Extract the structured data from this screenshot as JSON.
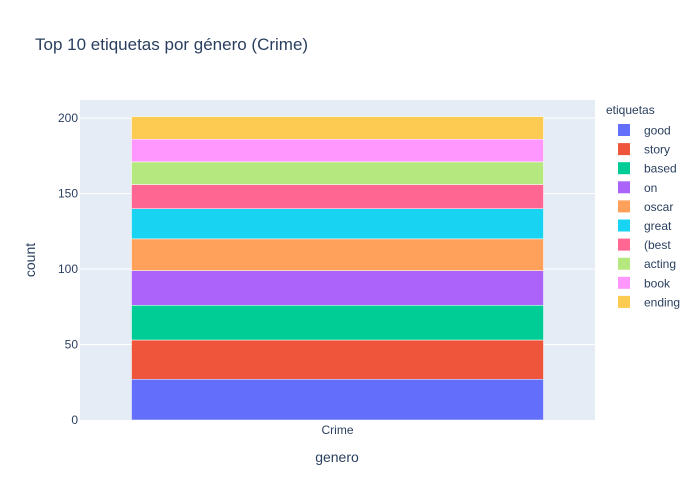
{
  "chart_data": {
    "type": "bar",
    "stacked": true,
    "title": "Top 10 etiquetas por género (Crime)",
    "xlabel": "genero",
    "ylabel": "count",
    "categories": [
      "Crime"
    ],
    "ylim": [
      0,
      212
    ],
    "yticks": [
      0,
      50,
      100,
      150,
      200
    ],
    "grid": true,
    "legend_title": "etiquetas",
    "legend_position": "right",
    "series": [
      {
        "name": "good",
        "values": [
          27
        ],
        "color": "#636efa"
      },
      {
        "name": "story",
        "values": [
          26
        ],
        "color": "#EF553B"
      },
      {
        "name": "based",
        "values": [
          23
        ],
        "color": "#00cc96"
      },
      {
        "name": "on",
        "values": [
          23
        ],
        "color": "#ab63fa"
      },
      {
        "name": "oscar",
        "values": [
          21
        ],
        "color": "#FFA15A"
      },
      {
        "name": "great",
        "values": [
          20
        ],
        "color": "#19d3f3"
      },
      {
        "name": "(best",
        "values": [
          16
        ],
        "color": "#FF6692"
      },
      {
        "name": "acting",
        "values": [
          15
        ],
        "color": "#B6E880"
      },
      {
        "name": "book",
        "values": [
          15
        ],
        "color": "#FF97FF"
      },
      {
        "name": "ending",
        "values": [
          15
        ],
        "color": "#FECB52"
      }
    ]
  }
}
